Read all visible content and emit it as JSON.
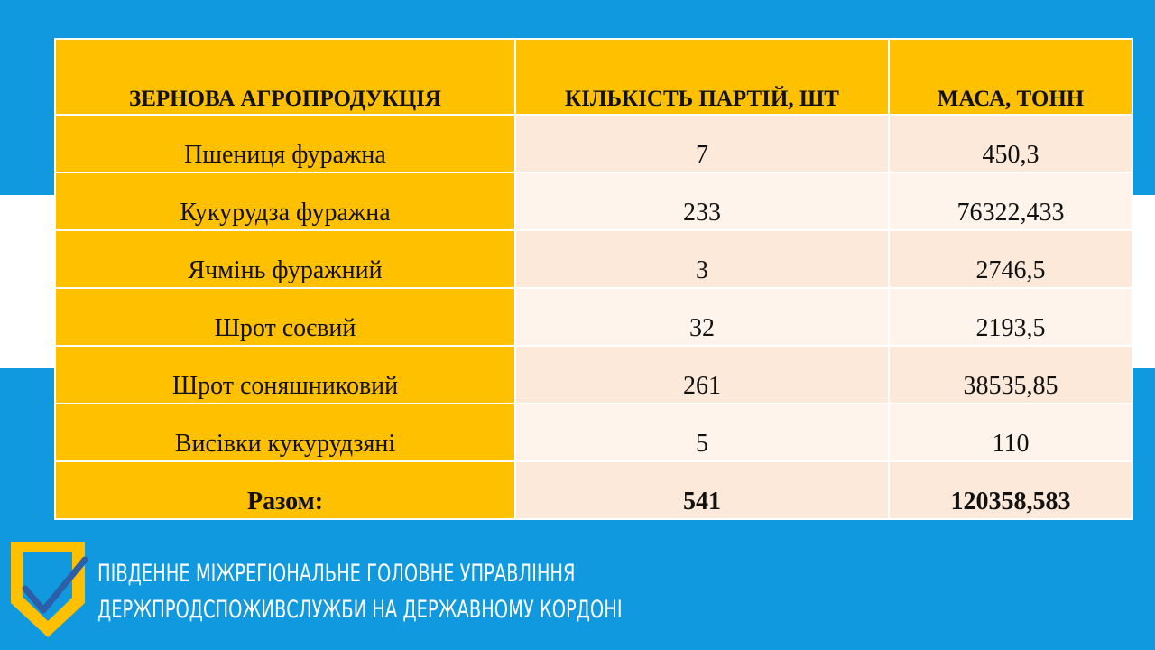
{
  "table": {
    "headers": [
      "ЗЕРНОВА АГРОПРОДУКЦІЯ",
      "КІЛЬКІСТЬ ПАРТІЙ, ШТ",
      "МАСА, ТОНН"
    ],
    "rows": [
      [
        "Пшениця фуражна",
        "7",
        "450,3"
      ],
      [
        "Кукурудза фуражна",
        "233",
        "76322,433"
      ],
      [
        "Ячмінь фуражний",
        "3",
        "2746,5"
      ],
      [
        "Шрот соєвий",
        "32",
        "2193,5"
      ],
      [
        "Шрот соняшниковий",
        "261",
        "38535,85"
      ],
      [
        "Висівки кукурудзяні",
        "5",
        "110"
      ]
    ],
    "total": [
      "Разом:",
      "541",
      "120358,583"
    ]
  },
  "footer": {
    "line1": "ПІВДЕННЕ МІЖРЕГІОНАЛЬНЕ ГОЛОВНЕ УПРАВЛІННЯ",
    "line2": "ДЕРЖПРОДСПОЖИВСЛУЖБИ НА ДЕРЖАВНОМУ КОРДОНІ"
  },
  "colors": {
    "background_blue": "#1199df",
    "header_yellow": "#ffc000",
    "row_peach": "#fde9d9",
    "row_light": "#fef4ec"
  }
}
